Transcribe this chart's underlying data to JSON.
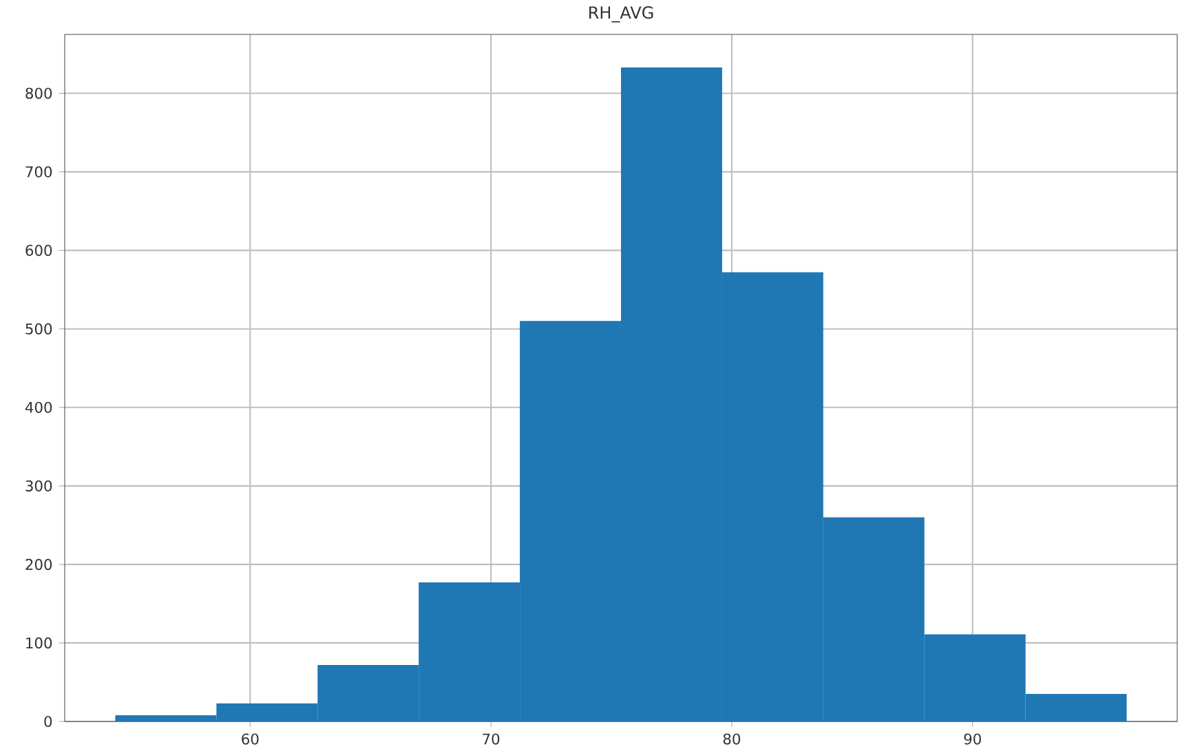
{
  "chart_data": {
    "type": "histogram",
    "title": "RH_AVG",
    "bins": [
      54.4,
      58.6,
      62.8,
      67.0,
      71.2,
      75.4,
      79.6,
      83.8,
      88.0,
      92.2,
      96.4
    ],
    "values": [
      8,
      23,
      72,
      177,
      510,
      833,
      572,
      260,
      111,
      35
    ],
    "color": "#1f77b4",
    "xlim": [
      52.3,
      98.5
    ],
    "ylim": [
      0,
      875
    ],
    "xticks": [
      60,
      70,
      80,
      90
    ],
    "yticks": [
      0,
      100,
      200,
      300,
      400,
      500,
      600,
      700,
      800
    ],
    "grid": true
  }
}
